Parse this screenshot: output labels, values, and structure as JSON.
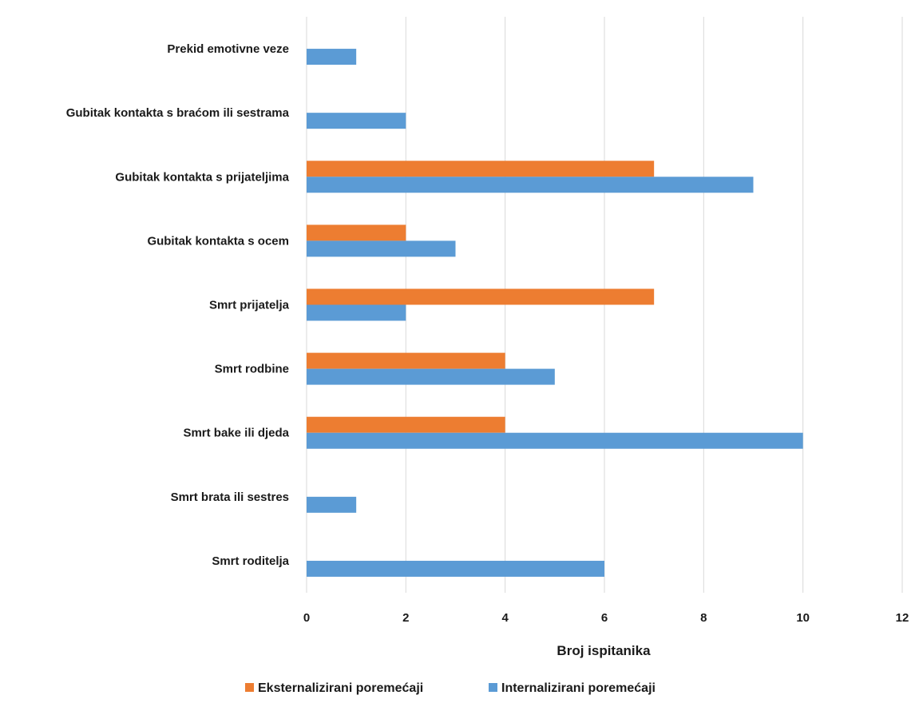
{
  "chart_data": {
    "type": "bar",
    "orientation": "horizontal",
    "categories": [
      "Prekid emotivne veze",
      "Gubitak kontakta s braćom ili sestrama",
      "Gubitak kontakta s prijateljima",
      "Gubitak kontakta s ocem",
      "Smrt prijatelja",
      "Smrt rodbine",
      "Smrt bake ili djeda",
      "Smrt brata ili sestres",
      "Smrt roditelja"
    ],
    "series": [
      {
        "name": "Eksternalizirani poremećaji",
        "color": "#ed7d31",
        "values": [
          0,
          0,
          7,
          2,
          7,
          4,
          4,
          0,
          0
        ]
      },
      {
        "name": "Internalizirani poremećaji",
        "color": "#5b9bd5",
        "values": [
          1,
          2,
          9,
          3,
          2,
          5,
          10,
          1,
          6
        ]
      }
    ],
    "xlabel": "Broj ispitanika",
    "xlim": [
      0,
      12
    ],
    "xticks": [
      "0",
      "2",
      "4",
      "6",
      "8",
      "10",
      "12"
    ],
    "grid": true,
    "legend_position": "bottom"
  }
}
